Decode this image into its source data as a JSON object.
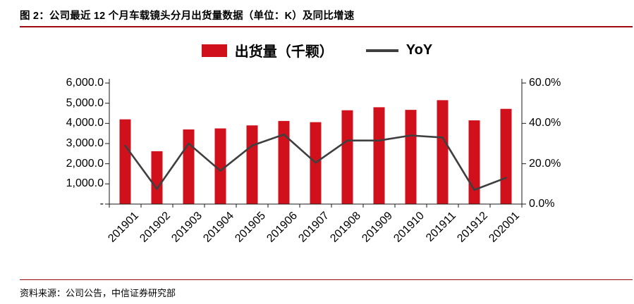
{
  "header": {
    "title": "图 2：公司最近 12 个月车载镜头分月出货量数据（单位：K）及同比增速"
  },
  "legend": {
    "bar_label": "出货量（千颗）",
    "line_label": "YoY"
  },
  "footer": {
    "source": "资料来源：公司公告，中信证券研究部"
  },
  "chart_data": {
    "type": "bar",
    "subtype": "combo-bar-line",
    "title": "公司最近 12 个月车载镜头分月出货量数据（单位：K）及同比增速",
    "categories": [
      "201901",
      "201902",
      "201903",
      "201904",
      "201905",
      "201906",
      "201907",
      "201908",
      "201909",
      "201910",
      "201911",
      "201912",
      "202001"
    ],
    "series": [
      {
        "name": "出货量（千颗）",
        "type": "bar",
        "axis": "left",
        "values": [
          4200,
          2620,
          3700,
          3750,
          3900,
          4120,
          4060,
          4650,
          4800,
          4670,
          5150,
          4150,
          4720
        ]
      },
      {
        "name": "YoY",
        "type": "line",
        "axis": "right",
        "unit": "%",
        "values": [
          29.0,
          7.5,
          30.0,
          16.5,
          29.0,
          34.5,
          20.5,
          31.5,
          31.5,
          34.0,
          33.0,
          7.0,
          13.0
        ]
      }
    ],
    "left_axis": {
      "min": 0,
      "max": 6000,
      "tick_labels": [
        "6,000.0",
        "5,000.0",
        "4,000.0",
        "3,000.0",
        "2,000.0",
        "1,000.0",
        "-"
      ]
    },
    "right_axis": {
      "min": 0,
      "max": 60,
      "tick_labels": [
        "60.0%",
        "40.0%",
        "20.0%",
        "0.0%"
      ]
    },
    "grid": false,
    "legend_position": "top",
    "colors": {
      "bar": "#d0111c",
      "line": "#3f3f3f",
      "rule": "#9e0b0f",
      "axis": "#1a1a1a"
    }
  }
}
